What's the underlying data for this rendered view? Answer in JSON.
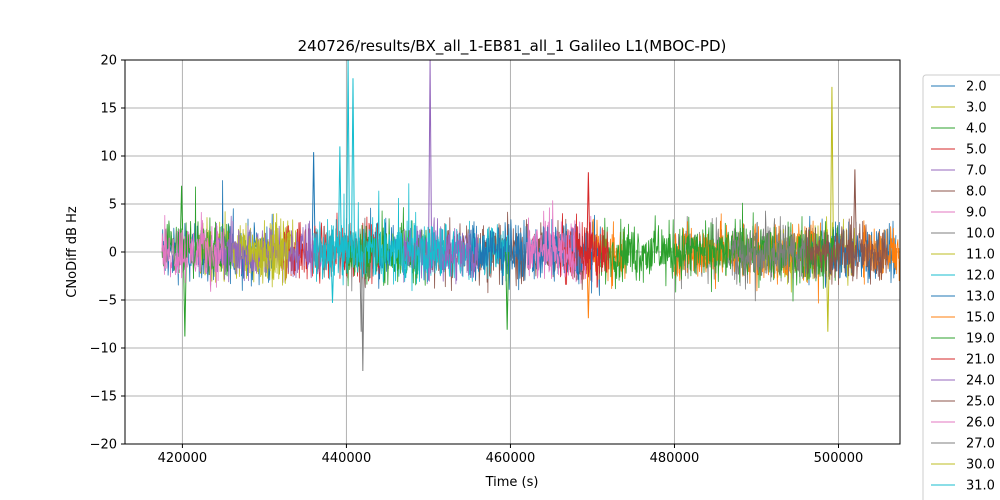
{
  "chart_data": {
    "type": "line",
    "title": "240726/results/BX_all_1-EB81_all_1 Galileo L1(MBOC-PD)",
    "xlabel": "Time (s)",
    "ylabel": "CNoDiff dB Hz",
    "xlim": [
      413000,
      507500
    ],
    "ylim": [
      -20,
      20
    ],
    "xticks": [
      420000,
      440000,
      460000,
      480000,
      500000
    ],
    "xtick_labels": [
      "420000",
      "440000",
      "460000",
      "480000",
      "500000"
    ],
    "yticks": [
      -20,
      -15,
      -10,
      -5,
      0,
      5,
      10,
      15,
      20
    ],
    "ytick_labels": [
      "−20",
      "−15",
      "−10",
      "−5",
      "0",
      "5",
      "10",
      "15",
      "20"
    ],
    "grid": true,
    "legend_placement": "right-outside",
    "series": [
      {
        "name": "2.0",
        "color": "#1f77b4",
        "segments": [
          [
            417500,
            431000
          ],
          [
            442000,
            446000
          ]
        ],
        "spikes": [
          [
            436000,
            10.4
          ]
        ]
      },
      {
        "name": "3.0",
        "color": "#bcbd22",
        "segments": [
          [
            422000,
            434000
          ]
        ],
        "spikes": []
      },
      {
        "name": "4.0",
        "color": "#2ca02c",
        "segments": [
          [
            417500,
            426000
          ]
        ],
        "spikes": [
          [
            420300,
            -8.8
          ],
          [
            419900,
            6.9
          ]
        ]
      },
      {
        "name": "5.0",
        "color": "#d62728",
        "segments": [
          [
            432000,
            444000
          ]
        ],
        "spikes": []
      },
      {
        "name": "7.0",
        "color": "#9467bd",
        "segments": [
          [
            424000,
            437000
          ]
        ],
        "spikes": [
          [
            450200,
            20
          ]
        ]
      },
      {
        "name": "8.0",
        "color": "#8c564b",
        "segments": [
          [
            450000,
            470000
          ]
        ],
        "spikes": []
      },
      {
        "name": "9.0",
        "color": "#e377c2",
        "segments": [
          [
            417500,
            425000
          ],
          [
            462000,
            470000
          ]
        ],
        "spikes": []
      },
      {
        "name": "10.0",
        "color": "#7f7f7f",
        "segments": [
          [
            436000,
            443000
          ],
          [
            480000,
            496000
          ]
        ],
        "spikes": [
          [
            442000,
            -12.4
          ],
          [
            441800,
            -8.3
          ]
        ]
      },
      {
        "name": "11.0",
        "color": "#bcbd22",
        "segments": [
          [
            491000,
            502000
          ]
        ],
        "spikes": [
          [
            499200,
            17.2
          ],
          [
            498700,
            -8.3
          ]
        ]
      },
      {
        "name": "12.0",
        "color": "#17becf",
        "segments": [
          [
            446000,
            460000
          ]
        ],
        "spikes": []
      },
      {
        "name": "13.0",
        "color": "#1f77b4",
        "segments": [
          [
            455000,
            471000
          ],
          [
            496000,
            507000
          ]
        ],
        "spikes": []
      },
      {
        "name": "15.0",
        "color": "#ff7f0e",
        "segments": [
          [
            470000,
            474000
          ],
          [
            480000,
            498000
          ],
          [
            503000,
            507500
          ]
        ],
        "spikes": [
          [
            469500,
            -6.9
          ]
        ]
      },
      {
        "name": "19.0",
        "color": "#2ca02c",
        "segments": [
          [
            440000,
            450000
          ],
          [
            471000,
            500000
          ]
        ],
        "spikes": [
          [
            459600,
            -8.1
          ]
        ]
      },
      {
        "name": "21.0",
        "color": "#d62728",
        "segments": [
          [
            466000,
            472000
          ]
        ],
        "spikes": [
          [
            469500,
            8.3
          ]
        ]
      },
      {
        "name": "24.0",
        "color": "#9467bd",
        "segments": [
          [
            447000,
            456000
          ]
        ],
        "spikes": []
      },
      {
        "name": "25.0",
        "color": "#8c564b",
        "segments": [
          [
            496000,
            506000
          ]
        ],
        "spikes": [
          [
            502000,
            8.6
          ]
        ]
      },
      {
        "name": "26.0",
        "color": "#e377c2",
        "segments": [
          [
            462000,
            468000
          ]
        ],
        "spikes": []
      },
      {
        "name": "27.0",
        "color": "#7f7f7f",
        "segments": [
          [
            487000,
            496000
          ]
        ],
        "spikes": []
      },
      {
        "name": "30.0",
        "color": "#bcbd22",
        "segments": [
          [
            428000,
            433000
          ]
        ],
        "spikes": []
      },
      {
        "name": "31.0",
        "color": "#17becf",
        "segments": [
          [
            436000,
            452000
          ]
        ],
        "spikes": [
          [
            440200,
            20
          ],
          [
            440800,
            18.1
          ],
          [
            439200,
            11
          ],
          [
            438300,
            -5.3
          ]
        ]
      }
    ]
  }
}
